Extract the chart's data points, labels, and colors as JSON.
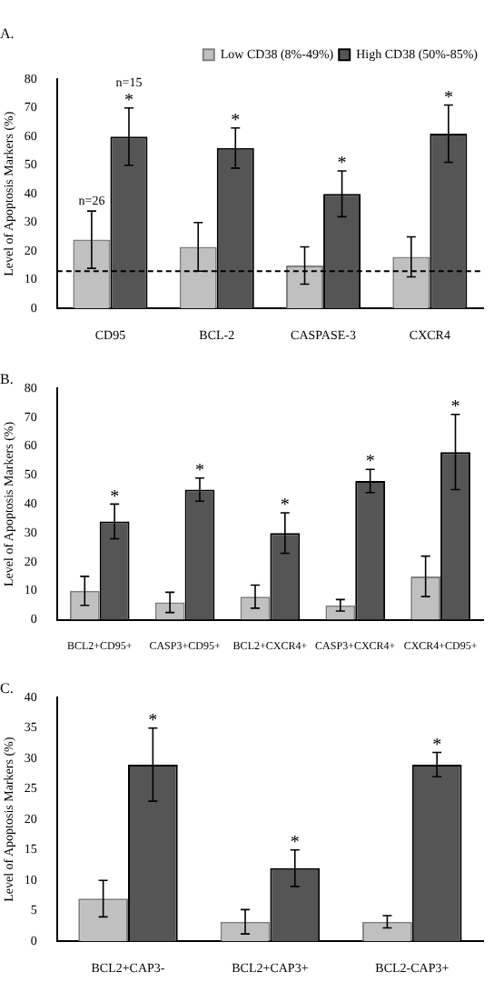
{
  "chart_data": [
    {
      "type": "bar",
      "title": "A.",
      "ylabel": "Level of Apoptosis Markers (%)",
      "categories": [
        "CD95",
        "BCL-2",
        "CASPASE-3",
        "CXCR4"
      ],
      "series": [
        {
          "name": "Low CD38 (8%-49%)",
          "color": "#c0c0c0",
          "values": [
            24,
            21.5,
            15,
            18
          ],
          "errors": [
            10,
            8.5,
            6.5,
            7
          ]
        },
        {
          "name": "High CD38 (50%-85%)",
          "color": "#555555",
          "values": [
            60,
            56,
            40,
            61
          ],
          "errors": [
            10,
            7,
            8,
            10
          ]
        }
      ],
      "ylim": [
        0,
        80
      ],
      "yticks": [
        0,
        10,
        20,
        30,
        40,
        50,
        60,
        70,
        80
      ],
      "legend": "top right",
      "ref_lines": [
        {
          "axis": "y",
          "value": 13,
          "line_style": "dashed",
          "color": "#000000"
        }
      ],
      "annotations": [
        {
          "text": "n=26",
          "x": "CD95",
          "y": 34
        },
        "n=15",
        "*",
        "*",
        "*",
        "*"
      ]
    },
    {
      "type": "bar",
      "title": "B.",
      "ylabel": "Level of Apoptosis Markers (%)",
      "categories": [
        "BCL2+CD95+",
        "CASP3+CD95+",
        "BCL2+CXCR4+",
        "CASP3+CXCR4+",
        "CXCR4+CD95+"
      ],
      "series": [
        {
          "color": "#c0c0c0",
          "values": [
            10,
            6,
            8,
            5,
            15
          ],
          "errors": [
            5,
            3.5,
            4,
            2,
            7
          ]
        },
        {
          "color": "#555555",
          "values": [
            34,
            45,
            30,
            48,
            58
          ],
          "errors": [
            6,
            4,
            7,
            4,
            13
          ]
        }
      ],
      "ylim": [
        0,
        80
      ],
      "yticks": [
        0,
        10,
        20,
        30,
        40,
        50,
        60,
        70,
        80
      ],
      "annotations": [
        "*",
        "*",
        "*",
        "*",
        "*"
      ]
    },
    {
      "type": "bar",
      "title": "C.",
      "ylabel": "Level of Apoptosis Markers (%)",
      "categories": [
        "BCL2+CAP3-",
        "BCL2+CAP3+",
        "BCL2-CAP3+"
      ],
      "series": [
        {
          "color": "#c0c0c0",
          "values": [
            7,
            3.2,
            3.2
          ],
          "errors": [
            3,
            2,
            1
          ]
        },
        {
          "color": "#555555",
          "values": [
            29,
            12,
            29
          ],
          "errors": [
            6,
            3,
            2
          ]
        }
      ],
      "ylim": [
        0,
        40
      ],
      "yticks": [
        0,
        5,
        10,
        15,
        20,
        25,
        30,
        35,
        40
      ],
      "annotations": [
        "*",
        "*",
        "*"
      ]
    }
  ]
}
